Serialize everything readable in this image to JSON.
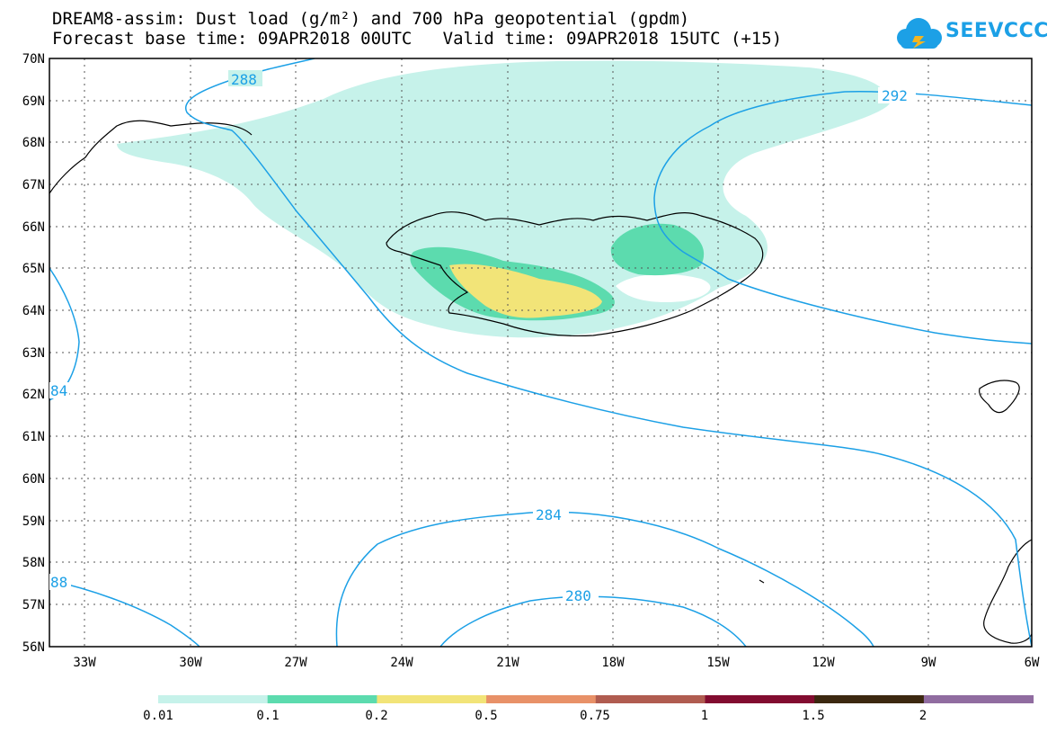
{
  "header": {
    "line1": "DREAM8-assim: Dust load (g/m²) and 700 hPa geopotential (gpdm)",
    "line2": "Forecast base time: 09APR2018 00UTC   Valid time: 09APR2018 15UTC (+15)"
  },
  "logo": {
    "text": "SEEVCCC",
    "icon": "cloud-icon"
  },
  "map": {
    "lat_labels": [
      "70N",
      "69N",
      "68N",
      "67N",
      "66N",
      "65N",
      "64N",
      "63N",
      "62N",
      "61N",
      "60N",
      "59N",
      "58N",
      "57N",
      "56N"
    ],
    "lon_labels": [
      "33W",
      "30W",
      "27W",
      "24W",
      "21W",
      "18W",
      "15W",
      "12W",
      "9W",
      "6W"
    ],
    "contour_labels": [
      "288",
      "292",
      "84",
      "284",
      "280",
      "88"
    ],
    "colors": {
      "contour": "#1ca0e6",
      "coast": "#000000"
    }
  },
  "legend": {
    "labels": [
      "0.01",
      "0.1",
      "0.2",
      "0.5",
      "0.75",
      "1",
      "1.5",
      "2"
    ],
    "colors": [
      "#c6f2ea",
      "#5cdbae",
      "#f2e478",
      "#e89168",
      "#b05c50",
      "#820c30",
      "#3c2810",
      "#906ca0"
    ]
  }
}
